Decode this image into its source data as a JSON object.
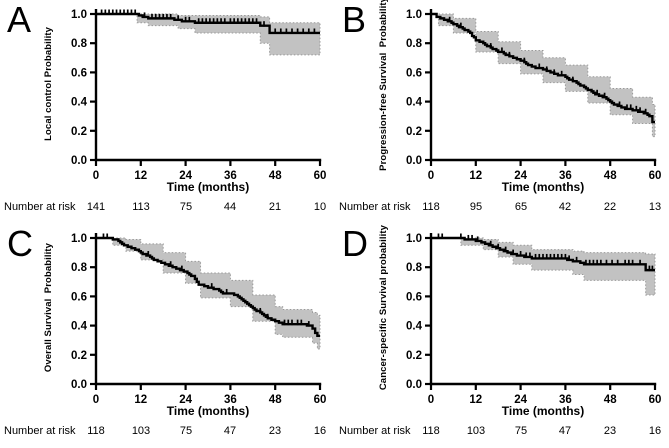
{
  "chart_data": [
    {
      "type": "line",
      "subtype": "kaplan-meier-step-with-ci",
      "panel_label": "A",
      "ylabel": "Local control Probability",
      "xlabel": "Time (months)",
      "xlim": [
        0,
        60
      ],
      "ylim": [
        0.0,
        1.0
      ],
      "xticks": [
        0,
        12,
        24,
        36,
        48,
        60
      ],
      "yticks": [
        "1.0",
        "0.8",
        "0.6",
        "0.4",
        "0.2",
        "0.0"
      ],
      "grid": false,
      "legend": "none",
      "curve_color": "#000000",
      "ci_color": "#c2c2c2",
      "ci_edge_color": "#999999",
      "series": [
        {
          "name": "Local control",
          "steps": [
            [
              0,
              1.0
            ],
            [
              11.5,
              0.99
            ],
            [
              12.5,
              0.98
            ],
            [
              14,
              0.97
            ],
            [
              21,
              0.96
            ],
            [
              23,
              0.95
            ],
            [
              26.5,
              0.94
            ],
            [
              44,
              0.92
            ],
            [
              46.5,
              0.87
            ]
          ]
        }
      ],
      "ci": [
        [
          11,
          0.94,
          1.0
        ],
        [
          14,
          0.92,
          1.0
        ],
        [
          22,
          0.9,
          0.99
        ],
        [
          26.5,
          0.87,
          0.99
        ],
        [
          44,
          0.8,
          0.98
        ],
        [
          46.5,
          0.72,
          0.94
        ],
        [
          60,
          0.72,
          0.94
        ]
      ],
      "censor_times": [
        1.5,
        2.5,
        3.5,
        4.5,
        5.5,
        6.5,
        7.5,
        8.5,
        9.5,
        10.5,
        13,
        15,
        16,
        17,
        18,
        19,
        20,
        22,
        24,
        25,
        27.5,
        28.5,
        29.5,
        30.5,
        31.5,
        32.5,
        33.5,
        34.5,
        36,
        37,
        38,
        39,
        40,
        41,
        42,
        43,
        45,
        48,
        49.5,
        51,
        52.5,
        54,
        55.5,
        57,
        58.5
      ],
      "number_at_risk_label": "Number at risk",
      "number_at_risk": [
        "141",
        "113",
        "75",
        "44",
        "21",
        "10"
      ]
    },
    {
      "type": "line",
      "subtype": "kaplan-meier-step-with-ci",
      "panel_label": "B",
      "ylabel": "Progression-free Survival  Probability",
      "xlabel": "Time (months)",
      "xlim": [
        0,
        60
      ],
      "ylim": [
        0.0,
        1.0
      ],
      "xticks": [
        0,
        12,
        24,
        36,
        48,
        60
      ],
      "yticks": [
        "1.0",
        "0.8",
        "0.6",
        "0.4",
        "0.2",
        "0.0"
      ],
      "grid": false,
      "legend": "none",
      "curve_color": "#000000",
      "ci_color": "#c2c2c2",
      "ci_edge_color": "#999999",
      "series": [
        {
          "name": "Progression-free survival",
          "steps": [
            [
              0,
              1.0
            ],
            [
              1.5,
              0.98
            ],
            [
              2.5,
              0.97
            ],
            [
              3.5,
              0.96
            ],
            [
              4.5,
              0.95
            ],
            [
              5.5,
              0.94
            ],
            [
              6,
              0.93
            ],
            [
              7,
              0.92
            ],
            [
              7.5,
              0.91
            ],
            [
              8.5,
              0.9
            ],
            [
              9,
              0.89
            ],
            [
              10,
              0.88
            ],
            [
              10.5,
              0.87
            ],
            [
              11,
              0.85
            ],
            [
              11.5,
              0.84
            ],
            [
              12,
              0.82
            ],
            [
              13,
              0.81
            ],
            [
              14,
              0.8
            ],
            [
              14.5,
              0.79
            ],
            [
              15,
              0.78
            ],
            [
              16,
              0.77
            ],
            [
              16.5,
              0.76
            ],
            [
              17.5,
              0.75
            ],
            [
              18,
              0.74
            ],
            [
              19.5,
              0.73
            ],
            [
              20,
              0.72
            ],
            [
              21,
              0.71
            ],
            [
              22,
              0.7
            ],
            [
              23,
              0.69
            ],
            [
              24,
              0.68
            ],
            [
              25,
              0.67
            ],
            [
              25.5,
              0.66
            ],
            [
              26,
              0.65
            ],
            [
              27,
              0.64
            ],
            [
              28,
              0.63
            ],
            [
              30,
              0.62
            ],
            [
              31,
              0.61
            ],
            [
              32,
              0.6
            ],
            [
              33,
              0.59
            ],
            [
              34,
              0.58
            ],
            [
              36,
              0.57
            ],
            [
              36.5,
              0.56
            ],
            [
              37,
              0.55
            ],
            [
              38,
              0.54
            ],
            [
              39,
              0.53
            ],
            [
              39.5,
              0.52
            ],
            [
              40,
              0.51
            ],
            [
              41,
              0.5
            ],
            [
              41.5,
              0.49
            ],
            [
              42,
              0.48
            ],
            [
              43,
              0.47
            ],
            [
              43.5,
              0.46
            ],
            [
              44,
              0.45
            ],
            [
              45,
              0.44
            ],
            [
              46,
              0.43
            ],
            [
              47,
              0.42
            ],
            [
              47.5,
              0.41
            ],
            [
              48,
              0.4
            ],
            [
              48.5,
              0.39
            ],
            [
              49,
              0.38
            ],
            [
              50,
              0.37
            ],
            [
              51,
              0.36
            ],
            [
              52,
              0.35
            ],
            [
              54,
              0.34
            ],
            [
              55.5,
              0.33
            ],
            [
              57,
              0.32
            ],
            [
              58,
              0.31
            ],
            [
              58.5,
              0.3
            ],
            [
              59.3,
              0.26
            ]
          ]
        }
      ],
      "ci": [
        [
          2,
          0.92,
          1.0
        ],
        [
          6,
          0.87,
          0.97
        ],
        [
          12,
          0.74,
          0.88
        ],
        [
          18,
          0.66,
          0.81
        ],
        [
          24,
          0.59,
          0.75
        ],
        [
          30,
          0.53,
          0.7
        ],
        [
          36,
          0.47,
          0.65
        ],
        [
          42,
          0.39,
          0.57
        ],
        [
          48,
          0.31,
          0.49
        ],
        [
          54,
          0.25,
          0.43
        ],
        [
          59.3,
          0.16,
          0.38
        ],
        [
          60,
          0.16,
          0.38
        ]
      ],
      "censor_times": [
        5,
        8,
        16,
        19,
        21,
        25,
        29,
        31,
        33,
        35,
        38,
        44.5,
        46.5,
        50.5,
        52.5,
        53.5,
        55,
        56,
        57.5
      ],
      "number_at_risk_label": "Number at risk",
      "number_at_risk": [
        "118",
        "95",
        "65",
        "42",
        "22",
        "13"
      ]
    },
    {
      "type": "line",
      "subtype": "kaplan-meier-step-with-ci",
      "panel_label": "C",
      "ylabel": "Overall Survival  Probability",
      "xlabel": "Time (months)",
      "xlim": [
        0,
        60
      ],
      "ylim": [
        0.0,
        1.0
      ],
      "xticks": [
        0,
        12,
        24,
        36,
        48,
        60
      ],
      "yticks": [
        "1.0",
        "0.8",
        "0.6",
        "0.4",
        "0.2",
        "0.0"
      ],
      "grid": false,
      "legend": "none",
      "curve_color": "#000000",
      "ci_color": "#c2c2c2",
      "ci_edge_color": "#999999",
      "series": [
        {
          "name": "Overall survival",
          "steps": [
            [
              0,
              1.0
            ],
            [
              4.5,
              0.99
            ],
            [
              6,
              0.98
            ],
            [
              6.5,
              0.97
            ],
            [
              7,
              0.96
            ],
            [
              7.5,
              0.95
            ],
            [
              8.5,
              0.94
            ],
            [
              9.5,
              0.93
            ],
            [
              10.5,
              0.92
            ],
            [
              11.5,
              0.91
            ],
            [
              12,
              0.9
            ],
            [
              12.5,
              0.89
            ],
            [
              13.5,
              0.88
            ],
            [
              14.5,
              0.87
            ],
            [
              15,
              0.86
            ],
            [
              15.5,
              0.85
            ],
            [
              16.5,
              0.84
            ],
            [
              17.5,
              0.83
            ],
            [
              18.5,
              0.82
            ],
            [
              19.5,
              0.81
            ],
            [
              20.5,
              0.8
            ],
            [
              21.5,
              0.79
            ],
            [
              22.5,
              0.78
            ],
            [
              23.5,
              0.77
            ],
            [
              24.5,
              0.76
            ],
            [
              25,
              0.75
            ],
            [
              25.5,
              0.74
            ],
            [
              26.5,
              0.72
            ],
            [
              27,
              0.7
            ],
            [
              27.5,
              0.68
            ],
            [
              29,
              0.67
            ],
            [
              30,
              0.66
            ],
            [
              31.5,
              0.65
            ],
            [
              33,
              0.64
            ],
            [
              33.5,
              0.63
            ],
            [
              34,
              0.62
            ],
            [
              37,
              0.61
            ],
            [
              38,
              0.6
            ],
            [
              38.5,
              0.59
            ],
            [
              39,
              0.58
            ],
            [
              39.5,
              0.57
            ],
            [
              40,
              0.56
            ],
            [
              40.5,
              0.55
            ],
            [
              41,
              0.54
            ],
            [
              41.5,
              0.53
            ],
            [
              42,
              0.52
            ],
            [
              42.5,
              0.51
            ],
            [
              43,
              0.5
            ],
            [
              44,
              0.49
            ],
            [
              44.5,
              0.48
            ],
            [
              45,
              0.47
            ],
            [
              45.5,
              0.46
            ],
            [
              46,
              0.45
            ],
            [
              47,
              0.44
            ],
            [
              48,
              0.43
            ],
            [
              49,
              0.42
            ],
            [
              50,
              0.41
            ],
            [
              56.5,
              0.4
            ],
            [
              58,
              0.38
            ],
            [
              58.7,
              0.35
            ],
            [
              59.3,
              0.33
            ]
          ]
        }
      ],
      "ci": [
        [
          4.5,
          0.95,
          1.0
        ],
        [
          8,
          0.91,
          0.99
        ],
        [
          12,
          0.85,
          0.96
        ],
        [
          18,
          0.76,
          0.9
        ],
        [
          24,
          0.69,
          0.84
        ],
        [
          28,
          0.59,
          0.76
        ],
        [
          36,
          0.53,
          0.71
        ],
        [
          42,
          0.43,
          0.61
        ],
        [
          48,
          0.34,
          0.53
        ],
        [
          50,
          0.32,
          0.51
        ],
        [
          58,
          0.28,
          0.49
        ],
        [
          59.3,
          0.24,
          0.47
        ],
        [
          60,
          0.24,
          0.47
        ]
      ],
      "censor_times": [
        2,
        3,
        14,
        20,
        23,
        31,
        35,
        44,
        46,
        50.5,
        51.5,
        52.5,
        54,
        55,
        57
      ],
      "number_at_risk_label": "Number at risk",
      "number_at_risk": [
        "118",
        "103",
        "75",
        "47",
        "23",
        "16"
      ]
    },
    {
      "type": "line",
      "subtype": "kaplan-meier-step-with-ci",
      "panel_label": "D",
      "ylabel": "Cancer-specific Survival probability",
      "xlabel": "Time (months)",
      "xlim": [
        0,
        60
      ],
      "ylim": [
        0.0,
        1.0
      ],
      "xticks": [
        0,
        12,
        24,
        36,
        48,
        60
      ],
      "yticks": [
        "1.0",
        "0.8",
        "0.6",
        "0.4",
        "0.2",
        "0.0"
      ],
      "grid": false,
      "legend": "none",
      "curve_color": "#000000",
      "ci_color": "#c2c2c2",
      "ci_edge_color": "#999999",
      "series": [
        {
          "name": "Cancer-specific survival",
          "steps": [
            [
              0,
              1.0
            ],
            [
              9,
              0.99
            ],
            [
              12,
              0.98
            ],
            [
              13.5,
              0.97
            ],
            [
              14.5,
              0.96
            ],
            [
              15.5,
              0.95
            ],
            [
              16.5,
              0.94
            ],
            [
              17.5,
              0.93
            ],
            [
              18.5,
              0.92
            ],
            [
              19.5,
              0.91
            ],
            [
              20.5,
              0.9
            ],
            [
              21.5,
              0.89
            ],
            [
              23,
              0.88
            ],
            [
              25,
              0.87
            ],
            [
              27,
              0.86
            ],
            [
              36.5,
              0.85
            ],
            [
              38,
              0.84
            ],
            [
              40,
              0.83
            ],
            [
              41,
              0.82
            ],
            [
              57.5,
              0.78
            ]
          ]
        }
      ],
      "ci": [
        [
          8,
          0.95,
          1.0
        ],
        [
          14,
          0.92,
          0.99
        ],
        [
          18,
          0.87,
          0.97
        ],
        [
          22,
          0.82,
          0.95
        ],
        [
          27,
          0.78,
          0.92
        ],
        [
          38,
          0.75,
          0.91
        ],
        [
          41,
          0.71,
          0.9
        ],
        [
          57.5,
          0.61,
          0.89
        ],
        [
          60,
          0.61,
          0.89
        ]
      ],
      "censor_times": [
        2,
        3,
        8,
        10,
        11,
        12.5,
        16,
        18,
        20,
        22,
        24,
        25.5,
        26.5,
        28,
        29,
        30,
        31,
        32,
        33,
        34,
        35,
        36,
        37,
        39,
        41.5,
        42.5,
        43.5,
        44.5,
        45.5,
        47,
        48.5,
        50,
        52,
        53,
        54,
        56,
        58.5,
        59.3
      ],
      "number_at_risk_label": "Number at risk",
      "number_at_risk": [
        "118",
        "103",
        "75",
        "47",
        "23",
        "16"
      ]
    }
  ]
}
